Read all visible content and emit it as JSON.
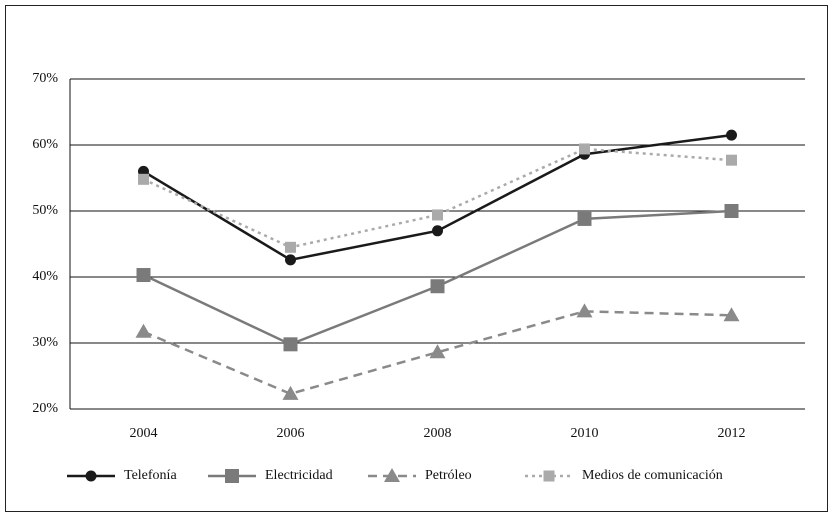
{
  "chart_data": {
    "type": "line",
    "categories": [
      "2004",
      "2006",
      "2008",
      "2010",
      "2012"
    ],
    "series": [
      {
        "name": "Telefonía",
        "color": "#1a1a1a",
        "marker": "circle",
        "line_style": "solid",
        "values": [
          56,
          42.6,
          47,
          58.6,
          61.5
        ]
      },
      {
        "name": "Electricidad",
        "color": "#7a7a7a",
        "marker": "square",
        "line_style": "solid",
        "values": [
          40.3,
          29.8,
          38.6,
          48.8,
          50
        ]
      },
      {
        "name": "Petróleo",
        "color": "#8a8a8a",
        "marker": "triangle",
        "line_style": "dashed",
        "values": [
          31.7,
          22.3,
          28.6,
          34.8,
          34.2
        ]
      },
      {
        "name": "Medios de comunicación",
        "color": "#aaaaaa",
        "marker": "small-square",
        "line_style": "dotted",
        "values": [
          54.8,
          44.5,
          49.4,
          59.4,
          57.7
        ]
      }
    ],
    "ylim": [
      20,
      70
    ],
    "yticks": [
      {
        "value": 20,
        "label": "20%"
      },
      {
        "value": 30,
        "label": "30%"
      },
      {
        "value": 40,
        "label": "40%"
      },
      {
        "value": 50,
        "label": "50%"
      },
      {
        "value": 60,
        "label": "60%"
      },
      {
        "value": 70,
        "label": "70%"
      }
    ],
    "grid": true,
    "legend": "bottom"
  }
}
